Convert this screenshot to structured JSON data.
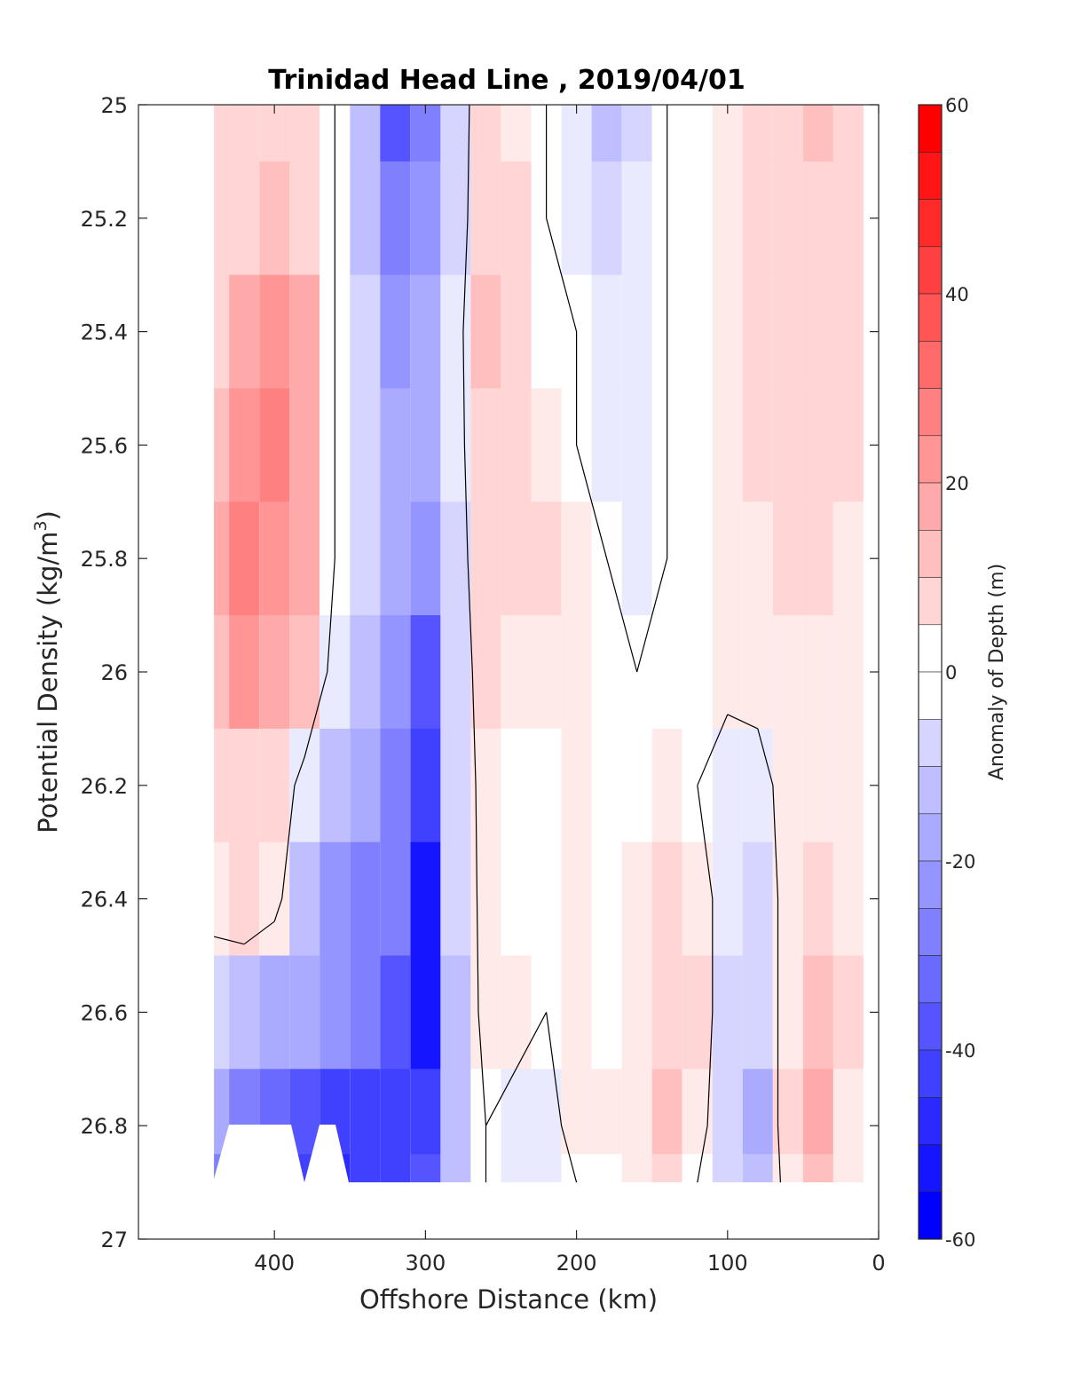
{
  "chart_data": {
    "type": "heatmap",
    "subtype": "filled-contour section",
    "title": "Trinidad Head Line , 2019/04/01",
    "xlabel": "Offshore Distance (km)",
    "ylabel_main": "Potential Density (kg/m",
    "ylabel_sup": "3",
    "ylabel_close": ")",
    "xlim": [
      490,
      0
    ],
    "x_reversed": true,
    "ylim": [
      27,
      25
    ],
    "y_reversed": true,
    "xticks": [
      400,
      300,
      200,
      100,
      0
    ],
    "xticklabels": [
      "400",
      "300",
      "200",
      "100",
      "0"
    ],
    "yticks": [
      25,
      25.2,
      25.4,
      25.6,
      25.8,
      26,
      26.2,
      26.4,
      26.6,
      26.8,
      27
    ],
    "yticklabels": [
      "25",
      "25.2",
      "25.4",
      "25.6",
      "25.8",
      "26",
      "26.2",
      "26.4",
      "26.6",
      "26.8",
      "27"
    ],
    "colorbar": {
      "label": "Anomaly of Depth (m)",
      "range": [
        -60,
        60
      ],
      "step": 5,
      "ticks": [
        60,
        40,
        20,
        0,
        -20,
        -40,
        -60
      ],
      "ticklabels": [
        "60",
        "40",
        "20",
        "0",
        "-20",
        "-40",
        "-60"
      ],
      "colormap": "blue-white-red"
    },
    "zero_contour": "black line at anomaly 0",
    "colors": {
      "negative": "#0000ff",
      "positive": "#ff0000",
      "zero": "#ffffff",
      "contour": "#000000"
    },
    "data_extent": {
      "x": [
        440,
        10
      ],
      "y": [
        25,
        26.9
      ]
    },
    "columns_x": [
      440,
      420,
      400,
      380,
      360,
      340,
      320,
      300,
      280,
      260,
      240,
      220,
      200,
      180,
      160,
      140,
      120,
      100,
      80,
      60,
      40,
      20
    ],
    "rows_y": [
      25.0,
      25.2,
      25.4,
      25.6,
      25.8,
      26.0,
      26.2,
      26.4,
      26.6,
      26.8,
      26.9
    ],
    "anomaly_grid": [
      [
        8,
        10,
        12,
        10,
        0,
        -15,
        -38,
        -30,
        -10,
        12,
        5,
        0,
        -5,
        -15,
        -10,
        0,
        0,
        5,
        8,
        10,
        15,
        12
      ],
      [
        8,
        12,
        15,
        12,
        0,
        -15,
        -30,
        -25,
        -8,
        12,
        8,
        0,
        -3,
        -8,
        -5,
        0,
        0,
        5,
        8,
        8,
        12,
        10
      ],
      [
        12,
        22,
        25,
        20,
        0,
        -12,
        -25,
        -20,
        -5,
        15,
        8,
        2,
        0,
        -5,
        -5,
        0,
        0,
        5,
        8,
        10,
        12,
        8
      ],
      [
        15,
        25,
        28,
        22,
        0,
        -10,
        -22,
        -20,
        -5,
        12,
        8,
        5,
        0,
        -3,
        -5,
        0,
        0,
        5,
        8,
        10,
        10,
        8
      ],
      [
        18,
        28,
        25,
        20,
        0,
        -10,
        -20,
        -25,
        -8,
        12,
        10,
        8,
        5,
        0,
        -5,
        0,
        0,
        3,
        5,
        8,
        8,
        5
      ],
      [
        15,
        25,
        22,
        15,
        -5,
        -15,
        -25,
        -38,
        -10,
        8,
        5,
        5,
        5,
        0,
        0,
        0,
        0,
        3,
        5,
        5,
        5,
        5
      ],
      [
        8,
        10,
        10,
        -5,
        -15,
        -20,
        -30,
        -45,
        -10,
        5,
        0,
        0,
        5,
        0,
        0,
        5,
        0,
        -5,
        -5,
        5,
        5,
        5
      ],
      [
        5,
        10,
        5,
        -15,
        -25,
        -30,
        -32,
        -55,
        -12,
        5,
        0,
        0,
        5,
        0,
        5,
        10,
        5,
        -5,
        -10,
        5,
        10,
        5
      ],
      [
        -10,
        -15,
        -20,
        -22,
        -25,
        -30,
        -38,
        -55,
        -15,
        5,
        5,
        0,
        5,
        0,
        5,
        12,
        8,
        -8,
        -10,
        5,
        15,
        8
      ],
      [
        -20,
        -30,
        -35,
        -40,
        -45,
        -45,
        -45,
        -45,
        -15,
        0,
        -5,
        -5,
        5,
        5,
        5,
        15,
        5,
        -10,
        -20,
        10,
        20,
        5
      ],
      [
        -30,
        -35,
        -40,
        -45,
        -50,
        -45,
        -45,
        -40,
        -15,
        0,
        -5,
        -5,
        0,
        0,
        5,
        10,
        0,
        -10,
        -15,
        5,
        15,
        5
      ]
    ]
  }
}
